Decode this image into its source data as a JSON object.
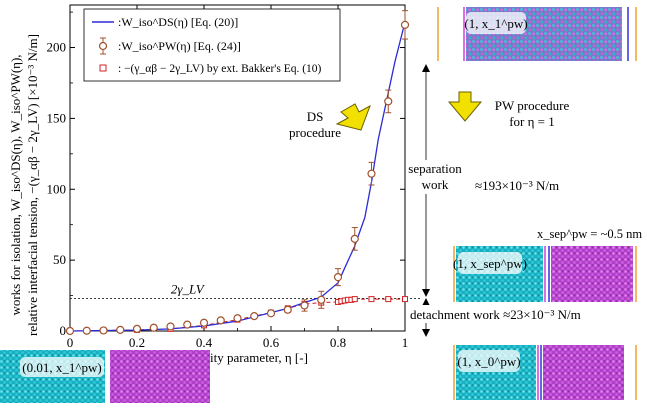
{
  "chart_data": {
    "type": "line",
    "xlabel": "miscibility parameter, η [-]",
    "ylabel_lines": [
      "works for isolation, W_iso^DS(η), W_iso^PW(η),",
      "relative interfacial tension, −(γ_αβ − 2γ_LV) [×10⁻³ N/m]"
    ],
    "xlim": [
      0,
      1
    ],
    "ylim": [
      0,
      230
    ],
    "x_ticks": [
      0,
      0.2,
      0.4,
      0.6,
      0.8,
      1
    ],
    "x_tick_labels": [
      "0",
      "0.2",
      "0.4",
      "0.6",
      "0.8",
      "1"
    ],
    "y_ticks": [
      0,
      50,
      100,
      150,
      200
    ],
    "y_tick_labels": [
      "0",
      "50",
      "100",
      "150",
      "200"
    ],
    "legend": {
      "placement": "top-left",
      "entries": [
        {
          "label": ":W_iso^DS(η)  [Eq. (20)]",
          "series": "ds"
        },
        {
          "label": ":W_iso^PW(η)  [Eq. (24)]",
          "series": "pw"
        },
        {
          "label": ": −(γ_αβ − 2γ_LV) by ext. Bakker's Eq. (10)",
          "series": "bakker"
        }
      ]
    },
    "series": [
      {
        "name": "W_iso^DS(η) [Eq. (20)]",
        "key": "ds",
        "style": "line",
        "color": "#2b2bd6",
        "x": [
          0,
          0.1,
          0.2,
          0.3,
          0.4,
          0.5,
          0.6,
          0.65,
          0.7,
          0.75,
          0.8,
          0.85,
          0.88,
          0.9,
          0.92,
          0.95,
          0.97,
          1.0
        ],
        "y": [
          0,
          0.3,
          0.6,
          1.5,
          3.5,
          7,
          13,
          16,
          20,
          24,
          34,
          60,
          80,
          105,
          135,
          168,
          190,
          218
        ]
      },
      {
        "name": "W_iso^PW(η) [Eq. (24)]",
        "key": "pw",
        "style": "marker-errorbar",
        "color": "#a0522d",
        "x": [
          0,
          0.05,
          0.1,
          0.15,
          0.2,
          0.25,
          0.3,
          0.35,
          0.4,
          0.45,
          0.5,
          0.55,
          0.6,
          0.65,
          0.7,
          0.75,
          0.8,
          0.85,
          0.9,
          0.95,
          1.0
        ],
        "y": [
          0,
          0.2,
          0.4,
          0.8,
          1.5,
          2.3,
          3.2,
          4.5,
          5.8,
          7.5,
          9,
          10.5,
          12.5,
          15,
          18,
          22,
          38,
          65,
          111,
          162,
          216
        ],
        "err": [
          0,
          0,
          0,
          0,
          0,
          0,
          0,
          0,
          0,
          0,
          0,
          0,
          0,
          2,
          4,
          6,
          6,
          8,
          8,
          8,
          10
        ]
      },
      {
        "name": "−(γ_αβ − 2γ_LV) by ext. Bakker's Eq. (10)",
        "key": "bakker",
        "style": "square-marker-dashed",
        "color": "#d42020",
        "x": [
          0,
          0.1,
          0.2,
          0.3,
          0.4,
          0.5,
          0.6,
          0.65,
          0.7,
          0.75,
          0.8,
          0.81,
          0.82,
          0.83,
          0.84,
          0.85,
          0.9,
          0.95,
          1.0
        ],
        "y": [
          0,
          0.3,
          0.8,
          1.5,
          4,
          8,
          13,
          16,
          19,
          20,
          20.5,
          21,
          21.5,
          22,
          22,
          22.5,
          22.5,
          22.5,
          22.5
        ]
      }
    ],
    "reference_line": {
      "y": 23,
      "label": "2γ_LV"
    },
    "annotations": {
      "ds_procedure": [
        "DS",
        "procedure"
      ],
      "pw_procedure": [
        "PW procedure",
        "for η = 1"
      ],
      "separation_work": [
        "separation",
        "work"
      ],
      "separation_value": "≈193×10⁻³ N/m",
      "detachment_work": "detachment work ≈23×10⁻³ N/m",
      "x_sep": "x_sep^pw = ~0.5 nm"
    },
    "snapshots": [
      {
        "key": "snap_001",
        "label": "(0.01, x_1^pw)"
      },
      {
        "key": "snap_top",
        "label": "(1, x_1^pw)"
      },
      {
        "key": "snap_sep",
        "label": "(1, x_sep^pw)"
      },
      {
        "key": "snap_bot",
        "label": "(1, x_0^pw)"
      }
    ]
  }
}
